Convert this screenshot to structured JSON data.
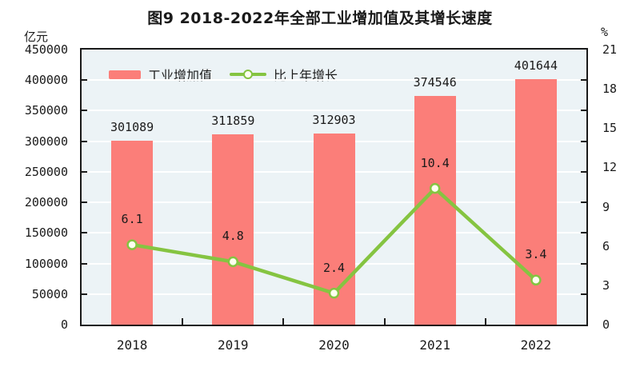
{
  "title": "图9  2018-2022年全部工业增加值及其增长速度",
  "axes": {
    "left_unit": "亿元",
    "right_unit": "%"
  },
  "legend": {
    "bar_label": "工业增加值",
    "line_label": "比上年增长"
  },
  "colors": {
    "bar": "#FB7E79",
    "line": "#85C441",
    "marker_fill": "#FDFFEF",
    "plot_bg": "#ECF3F6",
    "grid": "#FFFFFF",
    "axis": "#1A1A1A"
  },
  "chart_data": {
    "type": "bar",
    "categories": [
      "2018",
      "2019",
      "2020",
      "2021",
      "2022"
    ],
    "series": [
      {
        "name": "工业增加值",
        "type": "bar",
        "axis": "left",
        "values": [
          301089,
          311859,
          312903,
          374546,
          401644
        ]
      },
      {
        "name": "比上年增长",
        "type": "line",
        "axis": "right",
        "values": [
          6.1,
          4.8,
          2.4,
          10.4,
          3.4
        ]
      }
    ],
    "title": "图9  2018-2022年全部工业增加值及其增长速度",
    "xlabel": "",
    "left_axis": {
      "label": "亿元",
      "ticks": [
        0,
        50000,
        100000,
        150000,
        200000,
        250000,
        300000,
        350000,
        400000,
        450000
      ],
      "lim": [
        0,
        450000
      ]
    },
    "right_axis": {
      "label": "%",
      "ticks": [
        0,
        3,
        6,
        9,
        12,
        15,
        18,
        21
      ],
      "lim": [
        0,
        21
      ]
    },
    "grid": true,
    "legend_position": "top-left-inside"
  }
}
